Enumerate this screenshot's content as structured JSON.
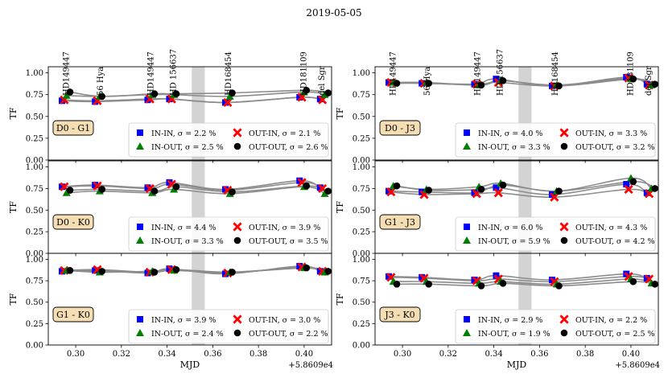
{
  "chart_data": {
    "type": "line+scatter",
    "title": "2019-05-05",
    "xlabel": "MJD",
    "ylabel": "TF",
    "x_offset_label": "+5.8609e4",
    "xlim": [
      0.288,
      0.412
    ],
    "ylim": [
      0.0,
      1.07
    ],
    "xticks": [
      0.3,
      0.32,
      0.34,
      0.36,
      0.38,
      0.4
    ],
    "xtick_labels": [
      "0.30",
      "0.32",
      "0.34",
      "0.36",
      "0.38",
      "0.40"
    ],
    "yticks": [
      0.0,
      0.25,
      0.5,
      0.75,
      1.0
    ],
    "ytick_labels": [
      "0.00",
      "0.25",
      "0.50",
      "0.75",
      "1.00"
    ],
    "shaded_band": [
      0.3508,
      0.3565
    ],
    "legend_series": [
      "IN-IN",
      "OUT-IN",
      "IN-OUT",
      "OUT-OUT"
    ],
    "legend_markers": [
      "square",
      "cross",
      "triangle",
      "circle"
    ],
    "series_colors": {
      "IN-IN": "#0000ff",
      "OUT-IN": "#ff0000",
      "IN-OUT": "#007f00",
      "OUT-OUT": "#000000"
    },
    "fit_line_color": "#8c8c8c",
    "band_color": "#d3d3d3",
    "label_box_color": "#f5deb3",
    "columns": [
      {
        "stars": [
          {
            "name": "HD149447",
            "x": 0.2955
          },
          {
            "name": "56 Hya",
            "x": 0.3105
          },
          {
            "name": "HD149447",
            "x": 0.3325
          },
          {
            "name": "HD 156637",
            "x": 0.3425
          },
          {
            "name": "HD168454",
            "x": 0.3665
          },
          {
            "name": "HD181109",
            "x": 0.3995
          },
          {
            "name": "del Sgr",
            "x": 0.4075
          }
        ],
        "panels": [
          {
            "label": "D0 - G1",
            "legend": [
              "IN-IN, σ = 2.2 %",
              "OUT-IN, σ = 2.1 %",
              "IN-OUT, σ = 2.5 %",
              "OUT-OUT, σ = 2.6 %"
            ],
            "series": [
              {
                "name": "IN-IN",
                "x": [
                  0.294,
                  0.3085,
                  0.3315,
                  0.341,
                  0.3655,
                  0.398,
                  0.407
                ],
                "y": [
                  0.68,
                  0.67,
                  0.69,
                  0.7,
                  0.66,
                  0.72,
                  0.7
                ]
              },
              {
                "name": "OUT-IN",
                "x": [
                  0.295,
                  0.3095,
                  0.3325,
                  0.342,
                  0.3665,
                  0.399,
                  0.408
                ],
                "y": [
                  0.69,
                  0.68,
                  0.7,
                  0.7,
                  0.66,
                  0.72,
                  0.69
                ]
              },
              {
                "name": "IN-OUT",
                "x": [
                  0.296,
                  0.3105,
                  0.3335,
                  0.343,
                  0.3675,
                  0.4,
                  0.409
                ],
                "y": [
                  0.74,
                  0.73,
                  0.75,
                  0.75,
                  0.73,
                  0.78,
                  0.75
                ]
              },
              {
                "name": "OUT-OUT",
                "x": [
                  0.2975,
                  0.3115,
                  0.3345,
                  0.344,
                  0.3685,
                  0.401,
                  0.4105
                ],
                "y": [
                  0.78,
                  0.73,
                  0.76,
                  0.76,
                  0.77,
                  0.8,
                  0.77
                ]
              }
            ]
          },
          {
            "label": "D0 - K0",
            "legend": [
              "IN-IN, σ = 4.4 %",
              "OUT-IN, σ = 3.9 %",
              "IN-OUT, σ = 3.3 %",
              "OUT-OUT, σ = 3.5 %"
            ],
            "series": [
              {
                "name": "IN-IN",
                "x": [
                  0.294,
                  0.3085,
                  0.3315,
                  0.341,
                  0.3655,
                  0.398,
                  0.407
                ],
                "y": [
                  0.77,
                  0.79,
                  0.76,
                  0.82,
                  0.74,
                  0.84,
                  0.76
                ]
              },
              {
                "name": "OUT-IN",
                "x": [
                  0.295,
                  0.3095,
                  0.3325,
                  0.342,
                  0.3665,
                  0.399,
                  0.408
                ],
                "y": [
                  0.77,
                  0.78,
                  0.75,
                  0.8,
                  0.73,
                  0.82,
                  0.75
                ]
              },
              {
                "name": "IN-OUT",
                "x": [
                  0.296,
                  0.3105,
                  0.3335,
                  0.343,
                  0.3675,
                  0.4,
                  0.409
                ],
                "y": [
                  0.7,
                  0.72,
                  0.7,
                  0.74,
                  0.69,
                  0.77,
                  0.69
                ]
              },
              {
                "name": "OUT-OUT",
                "x": [
                  0.2975,
                  0.3115,
                  0.3345,
                  0.344,
                  0.3685,
                  0.401,
                  0.4105
                ],
                "y": [
                  0.73,
                  0.74,
                  0.72,
                  0.77,
                  0.71,
                  0.78,
                  0.72
                ]
              }
            ]
          },
          {
            "label": "G1 - K0",
            "legend": [
              "IN-IN, σ = 3.9 %",
              "OUT-IN, σ = 3.0 %",
              "IN-OUT, σ = 2.4 %",
              "OUT-OUT, σ = 2.2 %"
            ],
            "series": [
              {
                "name": "IN-IN",
                "x": [
                  0.294,
                  0.3085,
                  0.3315,
                  0.341,
                  0.3655,
                  0.398,
                  0.407
                ],
                "y": [
                  0.86,
                  0.87,
                  0.84,
                  0.89,
                  0.83,
                  0.92,
                  0.86
                ]
              },
              {
                "name": "OUT-IN",
                "x": [
                  0.295,
                  0.3095,
                  0.3325,
                  0.342,
                  0.3665,
                  0.399,
                  0.408
                ],
                "y": [
                  0.87,
                  0.88,
                  0.85,
                  0.88,
                  0.84,
                  0.91,
                  0.86
                ]
              },
              {
                "name": "IN-OUT",
                "x": [
                  0.296,
                  0.3105,
                  0.3335,
                  0.343,
                  0.3675,
                  0.4,
                  0.409
                ],
                "y": [
                  0.87,
                  0.85,
                  0.86,
                  0.87,
                  0.85,
                  0.9,
                  0.85
                ]
              },
              {
                "name": "OUT-OUT",
                "x": [
                  0.2975,
                  0.3115,
                  0.3345,
                  0.344,
                  0.3685,
                  0.401,
                  0.4105
                ],
                "y": [
                  0.87,
                  0.86,
                  0.85,
                  0.88,
                  0.85,
                  0.9,
                  0.86
                ]
              }
            ]
          }
        ]
      },
      {
        "stars": [
          {
            "name": "HD149447",
            "x": 0.2955
          },
          {
            "name": "56 Hya",
            "x": 0.3105
          },
          {
            "name": "HD149447",
            "x": 0.3325
          },
          {
            "name": "HD 156637",
            "x": 0.3425
          },
          {
            "name": "HD168454",
            "x": 0.3665
          },
          {
            "name": "HD181109",
            "x": 0.3995
          },
          {
            "name": "del Sgr",
            "x": 0.4075
          }
        ],
        "panels": [
          {
            "label": "D0 - J3",
            "legend": [
              "IN-IN, σ = 4.0 %",
              "OUT-IN, σ = 3.3 %",
              "IN-OUT, σ = 3.3 %",
              "OUT-OUT, σ = 3.2 %"
            ],
            "series": [
              {
                "name": "IN-IN",
                "x": [
                  0.294,
                  0.3085,
                  0.3315,
                  0.341,
                  0.3655,
                  0.398,
                  0.407
                ],
                "y": [
                  0.89,
                  0.88,
                  0.87,
                  0.93,
                  0.85,
                  0.95,
                  0.87
                ]
              },
              {
                "name": "OUT-IN",
                "x": [
                  0.295,
                  0.3095,
                  0.3325,
                  0.342,
                  0.3665,
                  0.399,
                  0.408
                ],
                "y": [
                  0.89,
                  0.88,
                  0.87,
                  0.89,
                  0.85,
                  0.94,
                  0.86
                ]
              },
              {
                "name": "IN-OUT",
                "x": [
                  0.296,
                  0.3105,
                  0.3335,
                  0.343,
                  0.3675,
                  0.4,
                  0.409
                ],
                "y": [
                  0.89,
                  0.89,
                  0.86,
                  0.91,
                  0.86,
                  0.93,
                  0.86
                ]
              },
              {
                "name": "OUT-OUT",
                "x": [
                  0.2975,
                  0.3115,
                  0.3345,
                  0.344,
                  0.3685,
                  0.401,
                  0.4105
                ],
                "y": [
                  0.88,
                  0.88,
                  0.86,
                  0.91,
                  0.85,
                  0.93,
                  0.87
                ]
              }
            ]
          },
          {
            "label": "G1 - J3",
            "legend": [
              "IN-IN, σ = 6.0 %",
              "OUT-IN, σ = 4.3 %",
              "IN-OUT, σ = 5.9 %",
              "OUT-OUT, σ = 4.2 %"
            ],
            "series": [
              {
                "name": "IN-IN",
                "x": [
                  0.294,
                  0.3085,
                  0.3315,
                  0.341,
                  0.3655,
                  0.398,
                  0.407
                ],
                "y": [
                  0.72,
                  0.71,
                  0.7,
                  0.76,
                  0.68,
                  0.8,
                  0.7
                ]
              },
              {
                "name": "OUT-IN",
                "x": [
                  0.295,
                  0.3095,
                  0.3325,
                  0.342,
                  0.3665,
                  0.399,
                  0.408
                ],
                "y": [
                  0.71,
                  0.68,
                  0.69,
                  0.7,
                  0.65,
                  0.74,
                  0.69
                ]
              },
              {
                "name": "IN-OUT",
                "x": [
                  0.296,
                  0.3105,
                  0.3335,
                  0.343,
                  0.3675,
                  0.4,
                  0.409
                ],
                "y": [
                  0.78,
                  0.74,
                  0.77,
                  0.81,
                  0.72,
                  0.87,
                  0.75
                ]
              },
              {
                "name": "OUT-OUT",
                "x": [
                  0.2975,
                  0.3115,
                  0.3345,
                  0.344,
                  0.3685,
                  0.401,
                  0.4105
                ],
                "y": [
                  0.78,
                  0.73,
                  0.74,
                  0.79,
                  0.72,
                  0.83,
                  0.75
                ]
              }
            ]
          },
          {
            "label": "J3 - K0",
            "legend": [
              "IN-IN, σ = 2.9 %",
              "OUT-IN, σ = 2.2 %",
              "IN-OUT, σ = 1.9 %",
              "OUT-OUT, σ = 2.5 %"
            ],
            "series": [
              {
                "name": "IN-IN",
                "x": [
                  0.294,
                  0.3085,
                  0.3315,
                  0.341,
                  0.3655,
                  0.398,
                  0.407
                ],
                "y": [
                  0.8,
                  0.79,
                  0.76,
                  0.81,
                  0.76,
                  0.83,
                  0.78
                ]
              },
              {
                "name": "OUT-IN",
                "x": [
                  0.295,
                  0.3095,
                  0.3325,
                  0.342,
                  0.3665,
                  0.399,
                  0.408
                ],
                "y": [
                  0.79,
                  0.78,
                  0.75,
                  0.77,
                  0.74,
                  0.8,
                  0.77
                ]
              },
              {
                "name": "IN-OUT",
                "x": [
                  0.296,
                  0.3105,
                  0.3335,
                  0.343,
                  0.3675,
                  0.4,
                  0.409
                ],
                "y": [
                  0.74,
                  0.74,
                  0.72,
                  0.74,
                  0.71,
                  0.77,
                  0.72
                ]
              },
              {
                "name": "OUT-OUT",
                "x": [
                  0.2975,
                  0.3115,
                  0.3345,
                  0.344,
                  0.3685,
                  0.401,
                  0.4105
                ],
                "y": [
                  0.71,
                  0.71,
                  0.69,
                  0.72,
                  0.69,
                  0.74,
                  0.71
                ]
              }
            ]
          }
        ]
      }
    ]
  }
}
